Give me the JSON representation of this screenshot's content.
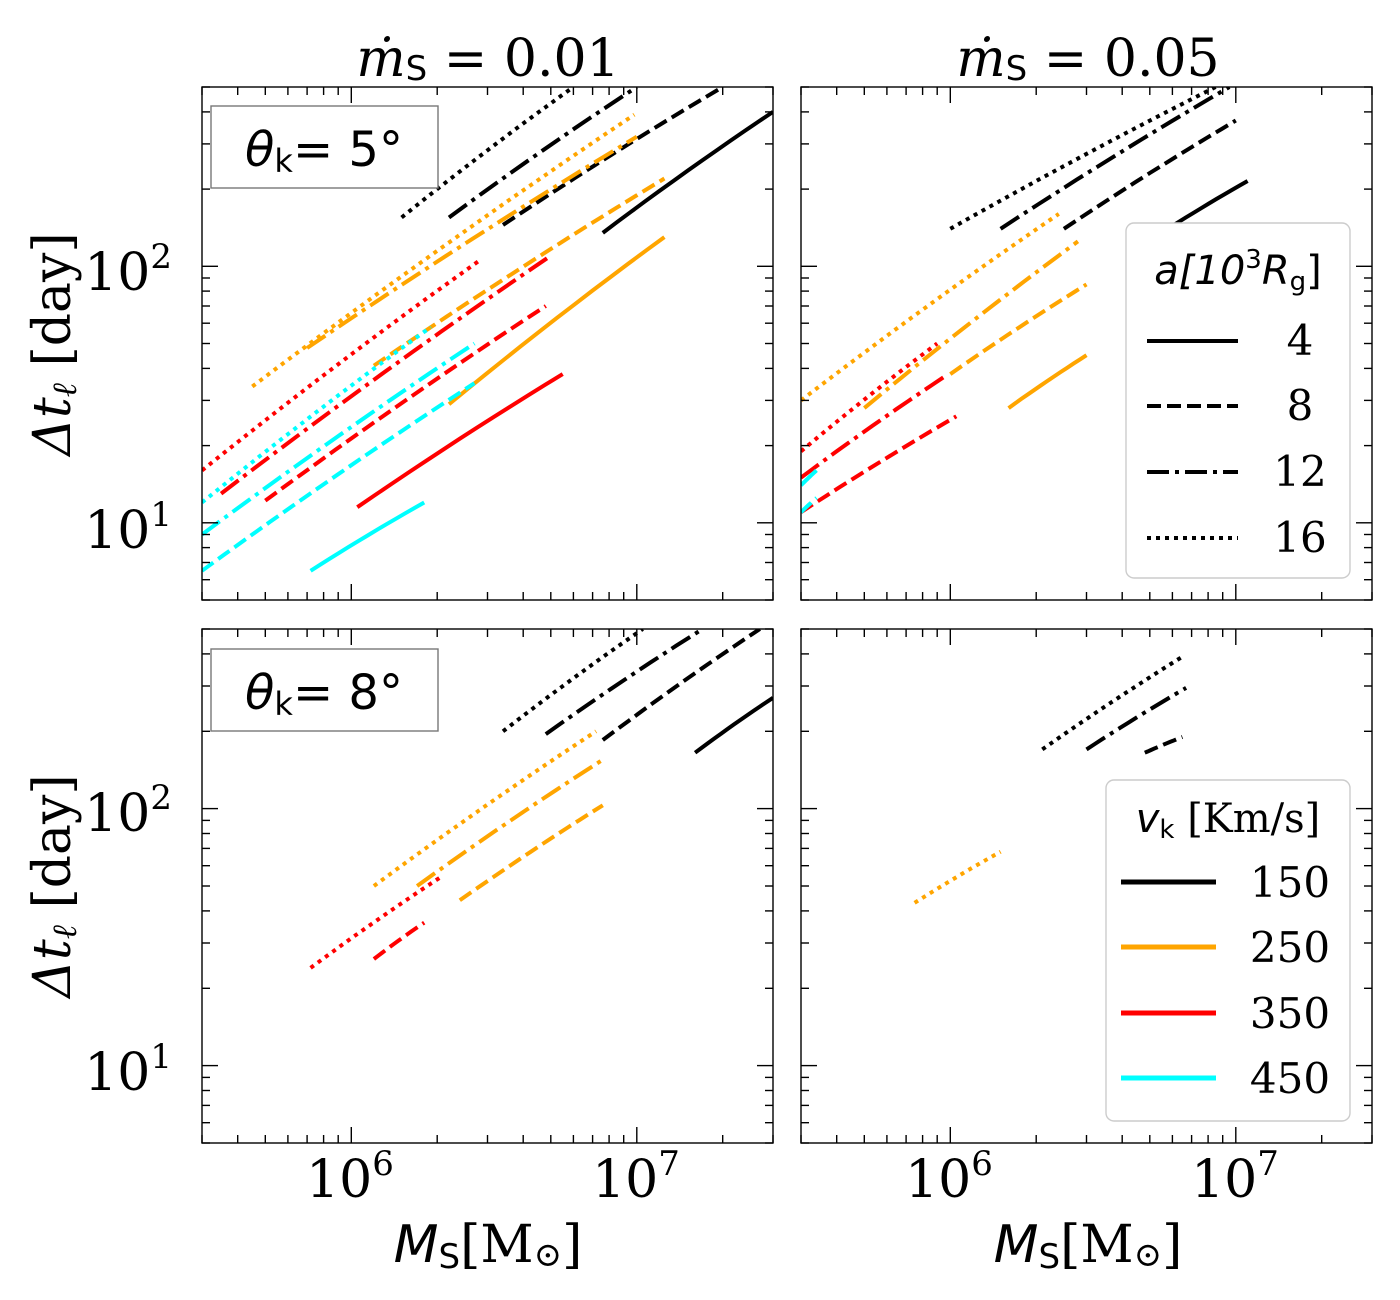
{
  "chart_data": {
    "type": "line",
    "x_scale": "log",
    "y_scale": "log",
    "xlim": [
      300000,
      30000000
    ],
    "ylim": [
      5,
      500
    ],
    "x_ticks": [
      {
        "value": 1000000,
        "base": "10",
        "exp": "6"
      },
      {
        "value": 10000000,
        "base": "10",
        "exp": "7"
      }
    ],
    "y_ticks": [
      {
        "value": 10,
        "base": "10",
        "exp": "1"
      },
      {
        "value": 100,
        "base": "10",
        "exp": "2"
      }
    ],
    "column_titles": [
      {
        "base": "ṁ",
        "sub": "S",
        "rest": " = 0.01"
      },
      {
        "base": "ṁ",
        "sub": "S",
        "rest": " = 0.05"
      }
    ],
    "row_labels": [
      {
        "base": "θ",
        "sub": "k",
        "rest": "= 5°"
      },
      {
        "base": "θ",
        "sub": "k",
        "rest": "= 8°"
      }
    ],
    "ylabel": {
      "text": "Δt",
      "sub": "ℓ",
      "unit": " [day]"
    },
    "xlabel": {
      "text": "M",
      "sub": "S",
      "unit": "[M",
      "unit_sub": "⊙",
      "unit_end": "]"
    },
    "colors": {
      "150": "#000000",
      "250": "#ffa500",
      "350": "#ff0000",
      "450": "#00ffff"
    },
    "legend_a": {
      "title": {
        "text": "a[10",
        "sup": "3",
        "mid": "R",
        "sub": "g",
        "end": "]"
      },
      "entries": [
        {
          "label": "4",
          "style": "solid"
        },
        {
          "label": "8",
          "style": "dashed"
        },
        {
          "label": "12",
          "style": "dashdot"
        },
        {
          "label": "16",
          "style": "dotted"
        }
      ]
    },
    "legend_v": {
      "title": {
        "text": "v",
        "sub": "k",
        "unit": " [Km/s]"
      },
      "entries": [
        {
          "label": "150",
          "color": "#000000"
        },
        {
          "label": "250",
          "color": "#ffa500"
        },
        {
          "label": "350",
          "color": "#ff0000"
        },
        {
          "label": "450",
          "color": "#00ffff"
        }
      ]
    },
    "panels": [
      {
        "name": "mdot-0.01-theta-5",
        "series": [
          {
            "v": 150,
            "a": 4,
            "x": [
              7600000,
              30000000
            ],
            "y": [
              135,
              400
            ]
          },
          {
            "v": 150,
            "a": 8,
            "x": [
              3400000,
              20000000
            ],
            "y": [
              145,
              500
            ]
          },
          {
            "v": 150,
            "a": 12,
            "x": [
              2200000,
              10000000
            ],
            "y": [
              155,
              500
            ]
          },
          {
            "v": 150,
            "a": 16,
            "x": [
              1500000,
              6000000
            ],
            "y": [
              155,
              500
            ]
          },
          {
            "v": 250,
            "a": 4,
            "x": [
              2200000,
              12500000
            ],
            "y": [
              29,
              130
            ]
          },
          {
            "v": 250,
            "a": 8,
            "x": [
              1200000,
              12500000
            ],
            "y": [
              41,
              220
            ]
          },
          {
            "v": 250,
            "a": 12,
            "x": [
              700000,
              10000000
            ],
            "y": [
              48,
              320
            ]
          },
          {
            "v": 250,
            "a": 16,
            "x": [
              450000,
              9800000
            ],
            "y": [
              34,
              390
            ]
          },
          {
            "v": 350,
            "a": 4,
            "x": [
              1050000,
              5500000
            ],
            "y": [
              11.5,
              38
            ]
          },
          {
            "v": 350,
            "a": 8,
            "x": [
              500000,
              4800000
            ],
            "y": [
              12.2,
              70
            ]
          },
          {
            "v": 350,
            "a": 12,
            "x": [
              350000,
              5000000
            ],
            "y": [
              13,
              110
            ]
          },
          {
            "v": 350,
            "a": 16,
            "x": [
              300000,
              2800000
            ],
            "y": [
              16,
              105
            ]
          },
          {
            "v": 450,
            "a": 4,
            "x": [
              720000,
              1800000
            ],
            "y": [
              6.5,
              12
            ]
          },
          {
            "v": 450,
            "a": 8,
            "x": [
              300000,
              2700000
            ],
            "y": [
              6.5,
              35
            ]
          },
          {
            "v": 450,
            "a": 12,
            "x": [
              300000,
              2700000
            ],
            "y": [
              9,
              50
            ]
          },
          {
            "v": 450,
            "a": 16,
            "x": [
              300000,
              1900000
            ],
            "y": [
              12,
              58
            ]
          }
        ]
      },
      {
        "name": "mdot-0.05-theta-5",
        "series": [
          {
            "v": 150,
            "a": 4,
            "x": [
              5200000,
              11000000
            ],
            "y": [
              130,
              215
            ]
          },
          {
            "v": 150,
            "a": 8,
            "x": [
              2500000,
              10000000
            ],
            "y": [
              140,
              370
            ]
          },
          {
            "v": 150,
            "a": 12,
            "x": [
              1500000,
              9500000
            ],
            "y": [
              140,
              500
            ]
          },
          {
            "v": 150,
            "a": 16,
            "x": [
              1000000,
              8500000
            ],
            "y": [
              140,
              500
            ]
          },
          {
            "v": 250,
            "a": 4,
            "x": [
              1600000,
              3000000
            ],
            "y": [
              28,
              45
            ]
          },
          {
            "v": 250,
            "a": 8,
            "x": [
              1000000,
              3000000
            ],
            "y": [
              38,
              85
            ]
          },
          {
            "v": 250,
            "a": 12,
            "x": [
              500000,
              2800000
            ],
            "y": [
              28,
              125
            ]
          },
          {
            "v": 250,
            "a": 16,
            "x": [
              300000,
              2400000
            ],
            "y": [
              30,
              160
            ]
          },
          {
            "v": 350,
            "a": 8,
            "x": [
              300000,
              1050000
            ],
            "y": [
              11,
              26
            ]
          },
          {
            "v": 350,
            "a": 12,
            "x": [
              300000,
              950000
            ],
            "y": [
              15,
              37
            ]
          },
          {
            "v": 350,
            "a": 16,
            "x": [
              300000,
              900000
            ],
            "y": [
              19,
              50
            ]
          },
          {
            "v": 450,
            "a": 8,
            "x": [
              300000,
              340000
            ],
            "y": [
              11,
              12.5
            ]
          },
          {
            "v": 450,
            "a": 12,
            "x": [
              300000,
              340000
            ],
            "y": [
              14,
              16
            ]
          }
        ]
      },
      {
        "name": "mdot-0.01-theta-8",
        "series": [
          {
            "v": 150,
            "a": 4,
            "x": [
              16000000,
              30000000
            ],
            "y": [
              165,
              270
            ]
          },
          {
            "v": 150,
            "a": 8,
            "x": [
              7600000,
              27000000
            ],
            "y": [
              185,
              500
            ]
          },
          {
            "v": 150,
            "a": 12,
            "x": [
              4800000,
              17000000
            ],
            "y": [
              195,
              500
            ]
          },
          {
            "v": 150,
            "a": 16,
            "x": [
              3400000,
              10500000
            ],
            "y": [
              200,
              500
            ]
          },
          {
            "v": 250,
            "a": 8,
            "x": [
              2400000,
              7600000
            ],
            "y": [
              44,
              103
            ]
          },
          {
            "v": 250,
            "a": 12,
            "x": [
              1700000,
              7600000
            ],
            "y": [
              50,
              155
            ]
          },
          {
            "v": 250,
            "a": 16,
            "x": [
              1200000,
              7200000
            ],
            "y": [
              50,
              200
            ]
          },
          {
            "v": 350,
            "a": 8,
            "x": [
              1200000,
              1800000
            ],
            "y": [
              26,
              36
            ]
          },
          {
            "v": 350,
            "a": 16,
            "x": [
              720000,
              2100000
            ],
            "y": [
              24,
              55
            ]
          }
        ]
      },
      {
        "name": "mdot-0.05-theta-8",
        "series": [
          {
            "v": 150,
            "a": 8,
            "x": [
              4800000,
              6500000
            ],
            "y": [
              165,
              190
            ]
          },
          {
            "v": 150,
            "a": 12,
            "x": [
              3000000,
              6700000
            ],
            "y": [
              170,
              295
            ]
          },
          {
            "v": 150,
            "a": 16,
            "x": [
              2100000,
              6500000
            ],
            "y": [
              170,
              390
            ]
          },
          {
            "v": 250,
            "a": 16,
            "x": [
              750000,
              1500000
            ],
            "y": [
              43,
              68
            ]
          }
        ]
      }
    ]
  }
}
